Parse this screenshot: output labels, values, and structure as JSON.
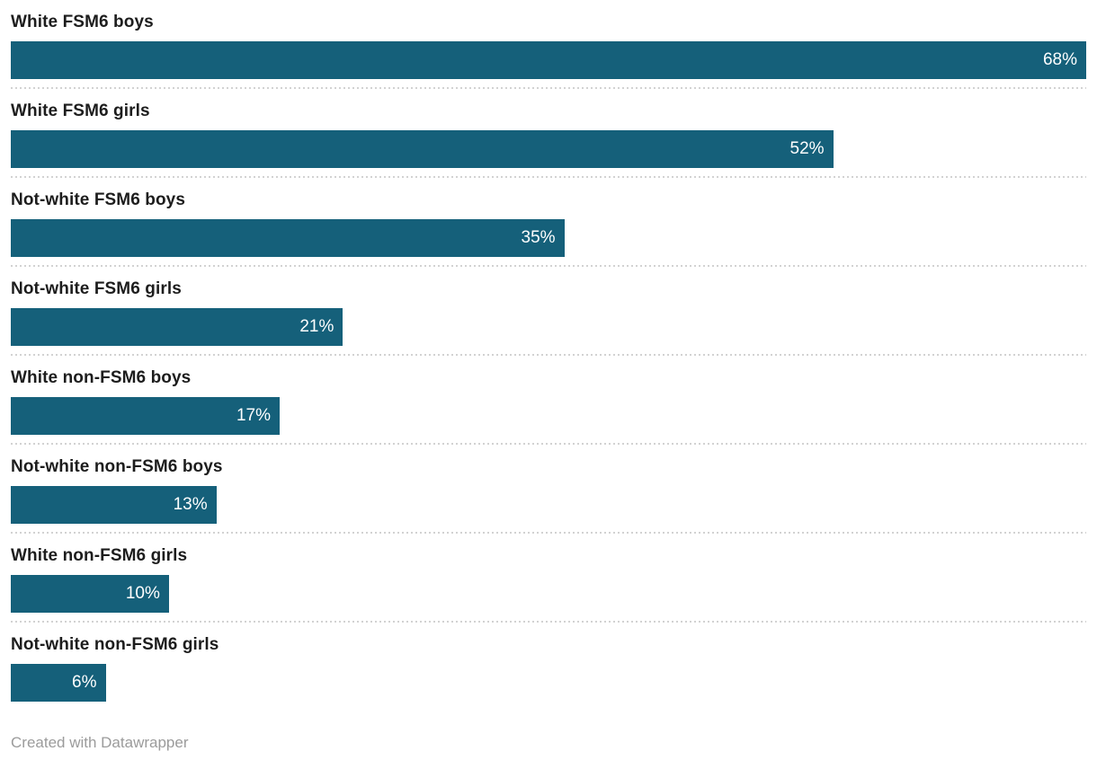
{
  "chart_data": {
    "type": "bar",
    "orientation": "horizontal",
    "categories": [
      "White FSM6 boys",
      "White FSM6 girls",
      "Not-white FSM6 boys",
      "Not-white FSM6 girls",
      "White non-FSM6 boys",
      "Not-white non-FSM6 boys",
      "White non-FSM6 girls",
      "Not-white non-FSM6 girls"
    ],
    "values": [
      68,
      52,
      35,
      21,
      17,
      13,
      10,
      6
    ],
    "value_labels": [
      "68%",
      "52%",
      "35%",
      "21%",
      "17%",
      "13%",
      "10%",
      "6%"
    ],
    "unit": "%",
    "xlim": [
      0,
      68
    ],
    "bar_color": "#15607a",
    "value_label_color": "#ffffff",
    "category_label_color": "#1d1d1d",
    "separator_color": "#d2d2d2",
    "grid": "off",
    "legend": "none",
    "title": "",
    "xlabel": "",
    "ylabel": ""
  },
  "footer": {
    "attribution": "Created with Datawrapper"
  }
}
